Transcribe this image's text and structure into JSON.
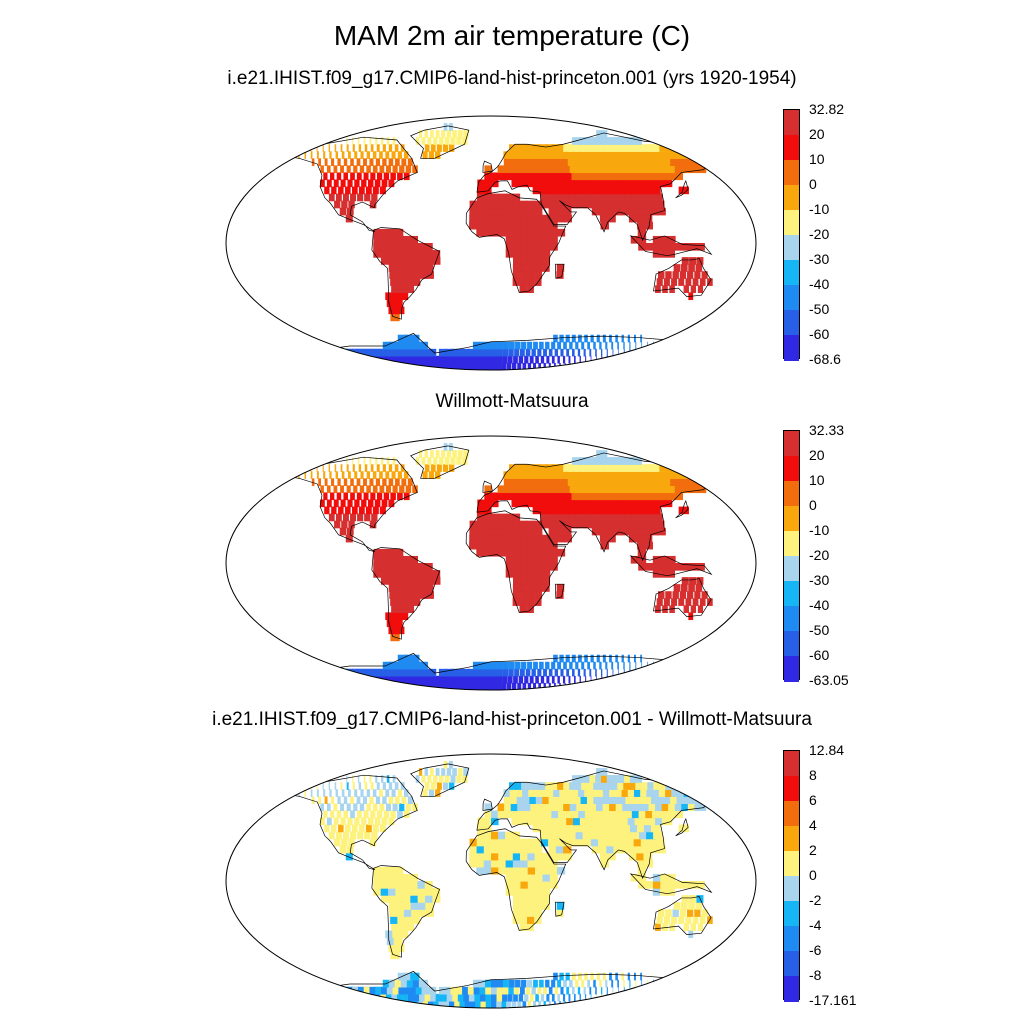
{
  "title": "MAM 2m air temperature (C)",
  "panels": [
    {
      "id": "model",
      "title": "i.e21.IHIST.f09_g17.CMIP6-land-hist-princeton.001 (yrs 1920-1954)",
      "colorbar": {
        "labels": [
          "32.82",
          "20",
          "10",
          "0",
          "-10",
          "-20",
          "-30",
          "-40",
          "-50",
          "-60",
          "-68.6"
        ],
        "colors": [
          "#d62f2f",
          "#f20d0d",
          "#f26d0d",
          "#f8a80c",
          "#fdf27d",
          "#a8d4ee",
          "#16b6f6",
          "#1f8bf2",
          "#275fe6",
          "#3028e2"
        ]
      }
    },
    {
      "id": "obs",
      "title": "Willmott-Matsuura",
      "colorbar": {
        "labels": [
          "32.33",
          "20",
          "10",
          "0",
          "-10",
          "-20",
          "-30",
          "-40",
          "-50",
          "-60",
          "-63.05"
        ],
        "colors": [
          "#d62f2f",
          "#f20d0d",
          "#f26d0d",
          "#f8a80c",
          "#fdf27d",
          "#a8d4ee",
          "#16b6f6",
          "#1f8bf2",
          "#275fe6",
          "#3028e2"
        ]
      }
    },
    {
      "id": "diff",
      "title": "i.e21.IHIST.f09_g17.CMIP6-land-hist-princeton.001 - Willmott-Matsuura",
      "colorbar": {
        "labels": [
          "12.84",
          "8",
          "6",
          "4",
          "2",
          "0",
          "-2",
          "-4",
          "-6",
          "-8",
          "-17.161"
        ],
        "colors": [
          "#d62f2f",
          "#f20d0d",
          "#f26d0d",
          "#f8a80c",
          "#fdf27d",
          "#a8d4ee",
          "#16b6f6",
          "#1f8bf2",
          "#275fe6",
          "#3028e2"
        ]
      }
    }
  ]
}
